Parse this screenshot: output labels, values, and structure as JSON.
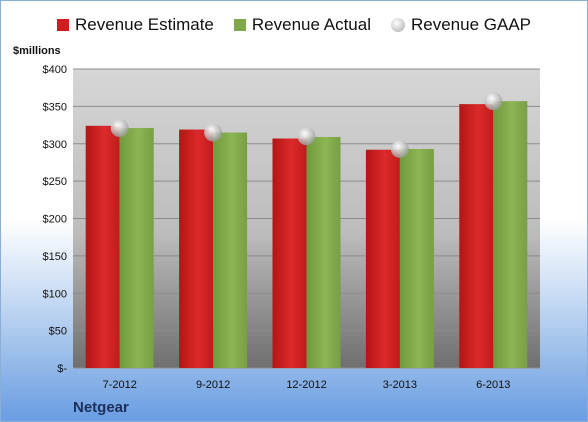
{
  "chart_data": {
    "type": "bar",
    "unit_label": "$millions",
    "company": "Netgear",
    "categories": [
      "7-2012",
      "9-2012",
      "12-2012",
      "3-2013",
      "6-2013"
    ],
    "series": [
      {
        "name": "Revenue Estimate",
        "color": "#cc1f1f",
        "values": [
          324,
          319,
          307,
          292,
          353
        ]
      },
      {
        "name": "Revenue Actual",
        "color": "#7fa84a",
        "values": [
          321,
          315,
          309,
          293,
          357
        ]
      },
      {
        "name": "Revenue GAAP",
        "color": "#b8b8b8",
        "values": [
          321,
          315,
          310,
          293,
          357
        ]
      }
    ],
    "ylim": [
      0,
      400
    ],
    "yticks": [
      0,
      50,
      100,
      150,
      200,
      250,
      300,
      350,
      400
    ],
    "ytick_labels": [
      "$-",
      "$50",
      "$100",
      "$150",
      "$200",
      "$250",
      "$300",
      "$350",
      "$400"
    ],
    "grid": true,
    "legend_position": "top"
  }
}
